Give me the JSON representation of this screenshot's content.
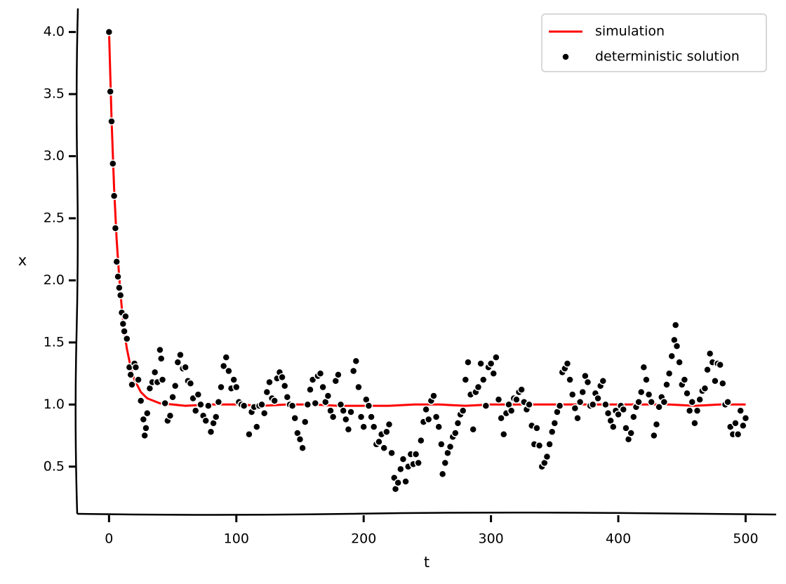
{
  "chart_data": {
    "type": "line",
    "xlabel": "t",
    "ylabel": "x",
    "xlim": [
      -25,
      524
    ],
    "ylim": [
      0.12,
      4.19
    ],
    "xticks": [
      0,
      100,
      200,
      300,
      400,
      500
    ],
    "yticks": [
      0.5,
      {
        "value": 1,
        "label": "1.0"
      },
      1.5,
      {
        "value": 2,
        "label": "2.0"
      },
      2.5,
      {
        "value": 3,
        "label": "3.0"
      },
      3.5,
      {
        "value": 4,
        "label": "4.0"
      }
    ],
    "legend": "upper right",
    "series": [
      {
        "name": "simulation",
        "type": "line",
        "color": "#ff0000",
        "x": [
          0,
          2,
          4,
          6,
          8,
          10,
          12,
          14,
          16,
          18,
          20,
          25,
          30,
          40,
          50,
          60,
          80,
          100,
          120,
          140,
          160,
          180,
          200,
          220,
          240,
          260,
          280,
          300,
          320,
          340,
          360,
          380,
          400,
          420,
          440,
          460,
          480,
          500
        ],
        "values": [
          4.0,
          3.29,
          2.74,
          2.33,
          2.02,
          1.78,
          1.59,
          1.45,
          1.35,
          1.26,
          1.2,
          1.1,
          1.05,
          1.01,
          1.0,
          0.99,
          1.0,
          1.0,
          0.99,
          1.0,
          1.0,
          0.99,
          0.99,
          0.99,
          1.0,
          1.0,
          0.99,
          1.0,
          1.0,
          1.0,
          1.0,
          1.0,
          1.0,
          1.0,
          1.0,
          0.99,
          1.0,
          1.0
        ]
      },
      {
        "name": "deterministic solution",
        "type": "scatter",
        "color": "#000000",
        "x": [
          0,
          1,
          2,
          3,
          4,
          5,
          6,
          7,
          8,
          9,
          10,
          11,
          12,
          13,
          14,
          16,
          17,
          18,
          20,
          21,
          23,
          25,
          27,
          28,
          29,
          30,
          32,
          34,
          36,
          38,
          40,
          41,
          42,
          44,
          46,
          48,
          50,
          52,
          54,
          56,
          58,
          60,
          62,
          64,
          66,
          68,
          70,
          72,
          74,
          76,
          78,
          80,
          82,
          84,
          86,
          88,
          90,
          92,
          94,
          96,
          98,
          100,
          102,
          104,
          106,
          110,
          112,
          114,
          116,
          118,
          120,
          122,
          124,
          126,
          128,
          130,
          132,
          134,
          136,
          138,
          140,
          142,
          144,
          146,
          148,
          150,
          152,
          154,
          156,
          158,
          160,
          162,
          164,
          166,
          168,
          170,
          172,
          174,
          176,
          178,
          180,
          182,
          184,
          186,
          188,
          190,
          192,
          194,
          196,
          198,
          200,
          202,
          204,
          206,
          208,
          210,
          212,
          214,
          216,
          218,
          220,
          222,
          224,
          225,
          227,
          229,
          231,
          233,
          235,
          237,
          239,
          241,
          243,
          245,
          247,
          249,
          251,
          253,
          255,
          257,
          259,
          261,
          262,
          264,
          266,
          268,
          270,
          272,
          274,
          276,
          278,
          280,
          282,
          284,
          286,
          288,
          290,
          292,
          294,
          296,
          298,
          300,
          302,
          304,
          306,
          308,
          310,
          312,
          314,
          316,
          318,
          320,
          322,
          324,
          326,
          328,
          330,
          332,
          334,
          336,
          338,
          340,
          342,
          344,
          346,
          348,
          350,
          352,
          354,
          356,
          358,
          360,
          362,
          364,
          366,
          368,
          370,
          372,
          374,
          376,
          378,
          380,
          382,
          384,
          386,
          388,
          390,
          392,
          394,
          396,
          398,
          400,
          402,
          404,
          406,
          408,
          410,
          412,
          414,
          416,
          418,
          420,
          422,
          424,
          426,
          428,
          430,
          432,
          434,
          436,
          438,
          440,
          442,
          444,
          445,
          446,
          448,
          450,
          452,
          454,
          456,
          458,
          460,
          462,
          464,
          466,
          468,
          470,
          472,
          474,
          476,
          478,
          480,
          482,
          484,
          486,
          488,
          490,
          492,
          494,
          496,
          498,
          500
        ],
        "values": [
          4.0,
          3.52,
          3.28,
          2.94,
          2.68,
          2.42,
          2.15,
          2.03,
          1.94,
          1.88,
          1.74,
          1.65,
          1.59,
          1.71,
          1.53,
          1.3,
          1.24,
          1.16,
          1.33,
          1.3,
          1.2,
          1.03,
          0.88,
          0.75,
          0.81,
          0.93,
          1.13,
          1.18,
          1.26,
          1.18,
          1.44,
          1.37,
          1.2,
          1.01,
          0.87,
          0.91,
          1.06,
          1.15,
          1.34,
          1.4,
          1.29,
          1.3,
          1.19,
          1.17,
          1.05,
          0.95,
          1.08,
          1.0,
          0.91,
          0.87,
          0.99,
          0.78,
          0.85,
          0.9,
          1.02,
          1.14,
          1.31,
          1.38,
          1.27,
          1.13,
          1.2,
          1.14,
          1.02,
          1.0,
          0.99,
          0.76,
          0.94,
          0.98,
          0.82,
          0.99,
          1.0,
          0.93,
          1.1,
          1.18,
          1.05,
          1.03,
          1.21,
          1.26,
          1.22,
          1.15,
          1.06,
          1.0,
          0.99,
          0.89,
          0.77,
          0.72,
          0.65,
          0.86,
          1.0,
          1.12,
          1.2,
          1.01,
          1.23,
          1.25,
          1.14,
          1.02,
          1.07,
          0.95,
          0.9,
          1.19,
          1.24,
          1.0,
          0.95,
          0.88,
          0.8,
          0.94,
          1.27,
          1.35,
          1.14,
          0.9,
          0.82,
          1.04,
          0.99,
          0.9,
          0.82,
          0.68,
          0.7,
          0.76,
          0.65,
          0.78,
          0.84,
          0.61,
          0.41,
          0.32,
          0.37,
          0.48,
          0.56,
          0.38,
          0.5,
          0.6,
          0.52,
          0.6,
          0.53,
          0.71,
          0.86,
          0.96,
          0.88,
          1.03,
          1.07,
          0.9,
          0.82,
          0.68,
          0.44,
          0.53,
          0.61,
          0.66,
          0.74,
          0.77,
          0.85,
          0.92,
          0.95,
          1.2,
          1.34,
          1.08,
          0.8,
          1.1,
          1.14,
          1.33,
          1.2,
          0.99,
          1.3,
          1.33,
          1.25,
          1.38,
          1.04,
          0.89,
          0.76,
          0.93,
          1.0,
          0.95,
          1.05,
          1.04,
          1.1,
          1.12,
          1.02,
          0.96,
          1.0,
          0.83,
          0.68,
          0.81,
          0.67,
          0.5,
          0.53,
          0.58,
          0.68,
          0.78,
          0.85,
          0.94,
          0.99,
          1.26,
          1.29,
          1.33,
          1.2,
          1.08,
          0.97,
          0.89,
          1.02,
          1.1,
          1.23,
          1.18,
          0.99,
          1.0,
          1.09,
          1.05,
          1.15,
          1.19,
          1.0,
          0.93,
          0.87,
          0.82,
          0.95,
          0.92,
          0.99,
          0.96,
          0.81,
          0.72,
          0.77,
          0.9,
          0.98,
          1.02,
          1.1,
          1.3,
          1.2,
          1.08,
          1.02,
          0.75,
          0.84,
          0.98,
          1.06,
          1.02,
          1.16,
          1.25,
          1.39,
          1.52,
          1.64,
          1.47,
          1.34,
          1.16,
          1.2,
          1.09,
          0.95,
          1.02,
          0.85,
          0.95,
          1.04,
          1.11,
          1.13,
          1.28,
          1.41,
          1.34,
          1.19,
          1.33,
          1.32,
          1.17,
          1.0,
          1.02,
          0.82,
          0.76,
          0.85,
          0.76,
          0.95,
          0.83,
          0.89
        ]
      }
    ]
  }
}
